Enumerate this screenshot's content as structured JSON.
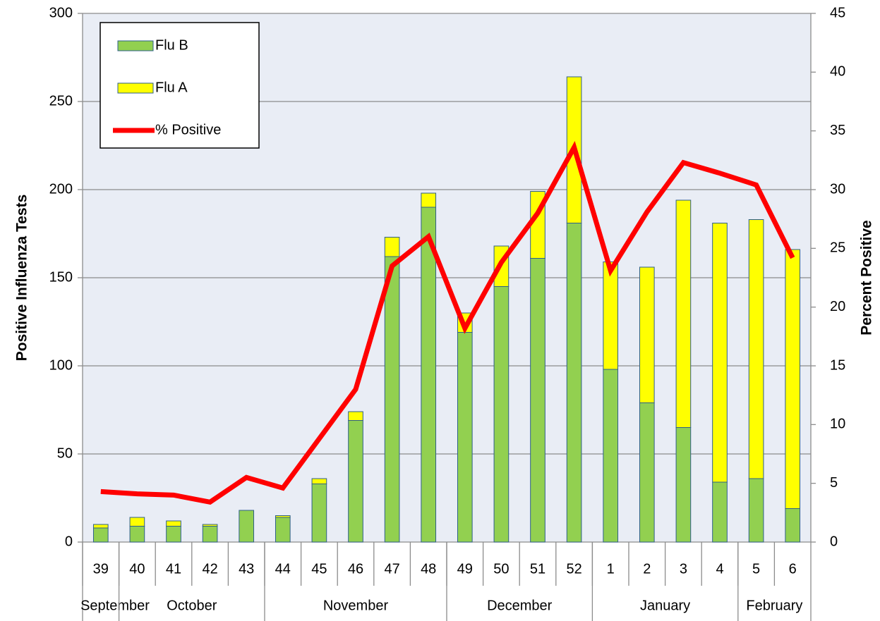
{
  "chart_data": {
    "type": "bar",
    "categories": [
      "39",
      "40",
      "41",
      "42",
      "43",
      "44",
      "45",
      "46",
      "47",
      "48",
      "49",
      "50",
      "51",
      "52",
      "1",
      "2",
      "3",
      "4",
      "5",
      "6"
    ],
    "months": [
      "September",
      "October",
      null,
      null,
      null,
      "November",
      null,
      null,
      null,
      null,
      "December",
      null,
      null,
      null,
      "January",
      null,
      null,
      null,
      "February",
      null
    ],
    "y_label": "Positive Influenza Tests",
    "y2_label": "Percent Positive",
    "ylim": [
      0,
      300
    ],
    "yticks": [
      0,
      50,
      100,
      150,
      200,
      250,
      300
    ],
    "y2lim": [
      0,
      45
    ],
    "y2ticks": [
      0,
      5,
      10,
      15,
      20,
      25,
      30,
      35,
      40,
      45
    ],
    "grid": true,
    "legend": "upper left",
    "stacked": true,
    "series": [
      {
        "name": "Flu B",
        "type": "bar",
        "color": "#92d050",
        "values": [
          8,
          9,
          9,
          9,
          18,
          14,
          33,
          69,
          162,
          190,
          119,
          145,
          161,
          181,
          98,
          79,
          65,
          34,
          36,
          19
        ]
      },
      {
        "name": "Flu A",
        "type": "bar",
        "color": "#ffff00",
        "values": [
          2,
          5,
          3,
          1,
          0,
          1,
          3,
          5,
          11,
          8,
          11,
          23,
          38,
          83,
          61,
          77,
          129,
          147,
          147,
          147
        ]
      },
      {
        "name": "% Positive",
        "type": "line",
        "axis": "y2",
        "color": "#ff0000",
        "values": [
          4.3,
          4.1,
          4.0,
          3.4,
          5.5,
          4.6,
          8.8,
          13.0,
          23.5,
          26.0,
          18.2,
          23.8,
          28.0,
          33.6,
          23.1,
          28.1,
          32.3,
          31.4,
          30.4,
          24.2
        ]
      }
    ]
  }
}
